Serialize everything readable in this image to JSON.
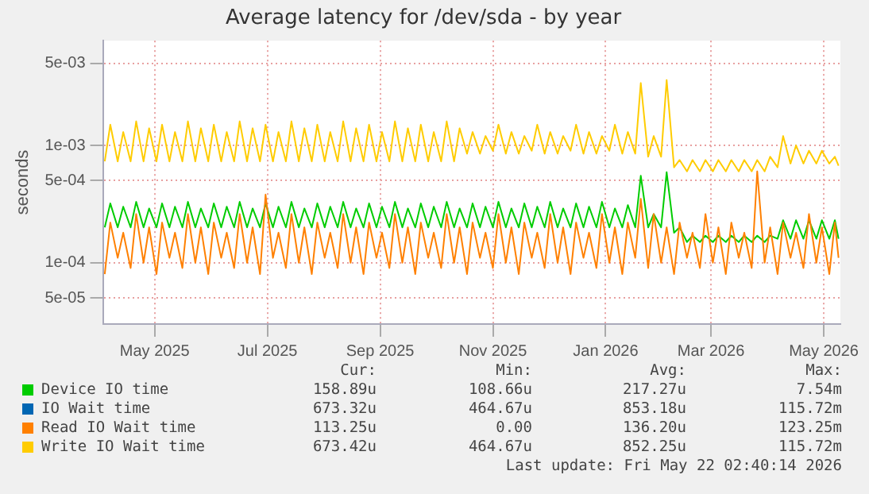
{
  "chart_data": {
    "type": "line",
    "title": "Average latency for /dev/sda - by year",
    "ylabel": "seconds",
    "log": "y",
    "grid": true,
    "legend": "bottom",
    "ylim": [
      3e-05,
      0.0078
    ],
    "yticks": [
      {
        "value": 5e-05,
        "label": "5e-05"
      },
      {
        "value": 0.0001,
        "label": "1e-04"
      },
      {
        "value": 0.0005,
        "label": "5e-04"
      },
      {
        "value": 0.001,
        "label": "1e-03"
      },
      {
        "value": 0.005,
        "label": "5e-03"
      }
    ],
    "xlim": [
      "2025-04-18",
      "2026-05-22"
    ],
    "xticks": [
      {
        "value": "2025-05-16",
        "label": "May 2025"
      },
      {
        "value": "2025-07-16",
        "label": "Jul 2025"
      },
      {
        "value": "2025-09-15",
        "label": "Sep 2025"
      },
      {
        "value": "2025-11-15",
        "label": "Nov 2025"
      },
      {
        "value": "2026-01-15",
        "label": "Jan 2026"
      },
      {
        "value": "2026-03-13",
        "label": "Mar 2026"
      },
      {
        "value": "2026-05-13",
        "label": "May 2026"
      }
    ],
    "x": [
      "2025-04-19",
      "2025-04-22",
      "2025-04-26",
      "2025-04-29",
      "2025-05-03",
      "2025-05-06",
      "2025-05-10",
      "2025-05-13",
      "2025-05-17",
      "2025-05-20",
      "2025-05-24",
      "2025-05-27",
      "2025-05-31",
      "2025-06-03",
      "2025-06-07",
      "2025-06-10",
      "2025-06-14",
      "2025-06-17",
      "2025-06-21",
      "2025-06-24",
      "2025-06-28",
      "2025-07-01",
      "2025-07-05",
      "2025-07-08",
      "2025-07-12",
      "2025-07-15",
      "2025-07-19",
      "2025-07-22",
      "2025-07-26",
      "2025-07-29",
      "2025-08-02",
      "2025-08-05",
      "2025-08-09",
      "2025-08-12",
      "2025-08-16",
      "2025-08-19",
      "2025-08-23",
      "2025-08-26",
      "2025-08-30",
      "2025-09-02",
      "2025-09-06",
      "2025-09-09",
      "2025-09-13",
      "2025-09-16",
      "2025-09-20",
      "2025-09-23",
      "2025-09-27",
      "2025-09-30",
      "2025-10-04",
      "2025-10-07",
      "2025-10-11",
      "2025-10-14",
      "2025-10-18",
      "2025-10-21",
      "2025-10-25",
      "2025-10-28",
      "2025-11-01",
      "2025-11-04",
      "2025-11-08",
      "2025-11-11",
      "2025-11-15",
      "2025-11-18",
      "2025-11-22",
      "2025-11-25",
      "2025-11-29",
      "2025-12-02",
      "2025-12-06",
      "2025-12-09",
      "2025-12-13",
      "2025-12-16",
      "2025-12-20",
      "2025-12-23",
      "2025-12-27",
      "2025-12-30",
      "2026-01-03",
      "2026-01-06",
      "2026-01-10",
      "2026-01-13",
      "2026-01-17",
      "2026-01-20",
      "2026-01-24",
      "2026-01-27",
      "2026-01-31",
      "2026-02-03",
      "2026-02-07",
      "2026-02-10",
      "2026-02-14",
      "2026-02-17",
      "2026-02-21",
      "2026-02-24",
      "2026-02-28",
      "2026-03-03",
      "2026-03-07",
      "2026-03-10",
      "2026-03-14",
      "2026-03-17",
      "2026-03-21",
      "2026-03-24",
      "2026-03-28",
      "2026-03-31",
      "2026-04-04",
      "2026-04-07",
      "2026-04-11",
      "2026-04-14",
      "2026-04-18",
      "2026-04-21",
      "2026-04-25",
      "2026-04-28",
      "2026-05-02",
      "2026-05-05",
      "2026-05-09",
      "2026-05-12",
      "2026-05-16",
      "2026-05-19",
      "2026-05-21"
    ],
    "series": [
      {
        "name": "Device IO time",
        "color": "#00cc00",
        "values": [
          0.0002,
          0.00032,
          0.0002,
          0.0003,
          0.0002,
          0.00033,
          0.0002,
          0.00029,
          0.0002,
          0.00032,
          0.0002,
          0.0003,
          0.0002,
          0.00033,
          0.0002,
          0.00029,
          0.0002,
          0.00032,
          0.0002,
          0.0003,
          0.0002,
          0.00033,
          0.0002,
          0.00029,
          0.0002,
          0.00032,
          0.0002,
          0.0003,
          0.0002,
          0.00033,
          0.0002,
          0.00029,
          0.0002,
          0.00032,
          0.0002,
          0.0003,
          0.0002,
          0.00033,
          0.0002,
          0.00029,
          0.0002,
          0.00032,
          0.0002,
          0.0003,
          0.0002,
          0.00033,
          0.0002,
          0.00029,
          0.0002,
          0.00032,
          0.0002,
          0.0003,
          0.0002,
          0.00033,
          0.0002,
          0.00029,
          0.0002,
          0.00032,
          0.0002,
          0.0003,
          0.0002,
          0.00033,
          0.0002,
          0.00029,
          0.0002,
          0.00032,
          0.0002,
          0.0003,
          0.0002,
          0.00033,
          0.0002,
          0.00029,
          0.0002,
          0.00032,
          0.0002,
          0.0003,
          0.0002,
          0.00033,
          0.0002,
          0.00029,
          0.0002,
          0.00031,
          0.0002,
          0.00055,
          0.0002,
          0.00026,
          0.0002,
          0.00059,
          0.00018,
          0.0002,
          0.00015,
          0.00017,
          0.00015,
          0.00017,
          0.00015,
          0.00017,
          0.00015,
          0.00017,
          0.00015,
          0.00017,
          0.00015,
          0.00017,
          0.00015,
          0.00017,
          0.00016,
          0.00023,
          0.00016,
          0.00023,
          0.00016,
          0.00023,
          0.00016,
          0.00023,
          0.00016,
          0.00023,
          0.00016
        ]
      },
      {
        "name": "IO Wait time",
        "color": "#0066b3",
        "values": [
          null,
          null,
          null,
          null,
          null,
          null,
          null,
          null,
          null,
          null,
          null,
          null,
          null,
          null,
          null,
          null,
          null,
          null,
          null,
          null,
          null,
          null,
          null,
          null,
          null,
          null,
          null,
          null,
          null,
          null,
          null,
          null,
          null,
          null,
          null,
          null,
          null,
          null,
          null,
          null,
          null,
          null,
          null,
          null,
          null,
          null,
          null,
          null,
          null,
          null,
          null,
          null,
          null,
          null,
          null,
          null,
          null,
          null,
          null,
          null,
          null,
          null,
          null,
          null,
          null,
          null,
          null,
          null,
          null,
          null,
          null,
          null,
          null,
          null,
          null,
          null,
          null,
          null,
          null,
          null,
          null,
          null,
          null,
          null,
          null,
          null,
          null,
          null,
          null,
          null,
          null,
          null,
          null,
          null,
          null,
          null,
          null,
          null,
          null,
          null,
          null,
          null,
          null,
          null,
          null,
          null,
          null,
          null,
          null,
          null,
          null,
          null,
          null,
          null,
          null
        ]
      },
      {
        "name": "Read IO Wait time",
        "color": "#ff8000",
        "values": [
          8e-05,
          0.00022,
          0.00011,
          0.00018,
          9e-05,
          0.00026,
          0.0001,
          0.0002,
          8e-05,
          0.00022,
          0.00011,
          0.00018,
          9e-05,
          0.00026,
          0.0001,
          0.0002,
          8e-05,
          0.00022,
          0.00011,
          0.00018,
          9e-05,
          0.00026,
          0.0001,
          0.0002,
          8e-05,
          0.00038,
          0.00011,
          0.00018,
          9e-05,
          0.00026,
          0.0001,
          0.0002,
          8e-05,
          0.00022,
          0.00011,
          0.00018,
          9e-05,
          0.00026,
          0.0001,
          0.0002,
          8e-05,
          0.00022,
          0.00011,
          0.00018,
          9e-05,
          0.00026,
          0.0001,
          0.0002,
          8e-05,
          0.00022,
          0.00011,
          0.00018,
          9e-05,
          0.00026,
          0.0001,
          0.0002,
          8e-05,
          0.00022,
          0.00011,
          0.00018,
          9e-05,
          0.00026,
          0.0001,
          0.0002,
          8e-05,
          0.00022,
          0.00011,
          0.00018,
          9e-05,
          0.00026,
          0.0001,
          0.0002,
          8e-05,
          0.00022,
          0.00011,
          0.00018,
          9e-05,
          0.00026,
          0.0001,
          0.0002,
          8e-05,
          0.00022,
          0.00011,
          0.00035,
          9e-05,
          0.00026,
          0.0001,
          0.0002,
          8e-05,
          0.00022,
          0.00011,
          0.00018,
          9e-05,
          0.00026,
          0.0001,
          0.0002,
          8e-05,
          0.00022,
          0.00011,
          0.00018,
          9e-05,
          0.0006,
          0.0001,
          0.0002,
          8e-05,
          0.00022,
          0.00011,
          0.00018,
          9e-05,
          0.00026,
          0.0001,
          0.0002,
          8e-05,
          0.00022,
          0.00011
        ]
      },
      {
        "name": "Write IO Wait time",
        "color": "#ffcc00",
        "values": [
          0.00073,
          0.0015,
          0.00073,
          0.0013,
          0.00073,
          0.0016,
          0.00073,
          0.0014,
          0.00073,
          0.0015,
          0.00073,
          0.0013,
          0.00073,
          0.0016,
          0.00073,
          0.0014,
          0.00073,
          0.0015,
          0.00073,
          0.0013,
          0.00073,
          0.0016,
          0.00073,
          0.0014,
          0.00073,
          0.0015,
          0.00073,
          0.0013,
          0.00073,
          0.0016,
          0.00073,
          0.0014,
          0.00073,
          0.0015,
          0.00073,
          0.0013,
          0.00073,
          0.0016,
          0.00073,
          0.0014,
          0.00073,
          0.0015,
          0.00073,
          0.0013,
          0.00073,
          0.0016,
          0.00073,
          0.0014,
          0.00073,
          0.0015,
          0.00073,
          0.0013,
          0.00073,
          0.0016,
          0.00073,
          0.0014,
          0.00085,
          0.0013,
          0.00085,
          0.0012,
          0.0009,
          0.0015,
          0.00085,
          0.0013,
          0.00085,
          0.0012,
          0.0009,
          0.0015,
          0.00085,
          0.0013,
          0.00085,
          0.0012,
          0.0009,
          0.0015,
          0.00085,
          0.0013,
          0.00085,
          0.0012,
          0.0009,
          0.0015,
          0.00085,
          0.0013,
          0.00085,
          0.0034,
          0.0008,
          0.0012,
          0.0008,
          0.0036,
          0.00065,
          0.00075,
          0.0006,
          0.00075,
          0.0006,
          0.00075,
          0.0006,
          0.00075,
          0.0006,
          0.00075,
          0.0006,
          0.00075,
          0.0006,
          0.00075,
          0.0006,
          0.0008,
          0.00065,
          0.0012,
          0.0007,
          0.001,
          0.0007,
          0.0009,
          0.0007,
          0.0009,
          0.0007,
          0.0008,
          0.00067
        ]
      }
    ],
    "annotations": [
      "Cur:",
      "Min:",
      "Avg:",
      "Max:",
      "158.89u",
      "108.66u",
      "217.27u",
      "7.54m",
      "673.32u",
      "464.67u",
      "853.18u",
      "115.72m",
      "113.25u",
      "0.00",
      "136.20u",
      "123.25m",
      "673.42u",
      "464.67u",
      "852.25u",
      "115.72m",
      "Last update: Fri May 22 02:40:14 2026"
    ]
  }
}
